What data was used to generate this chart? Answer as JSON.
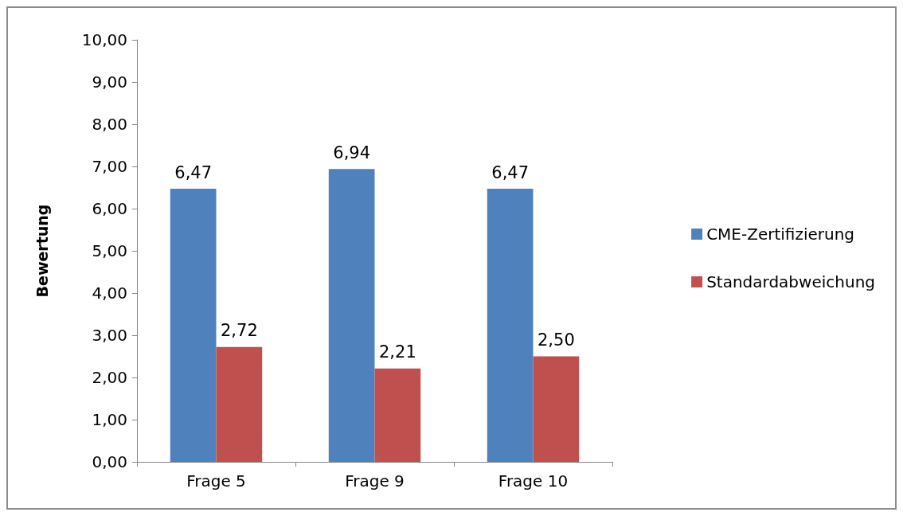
{
  "chart_data": {
    "type": "bar",
    "ylabel": "Bewertung",
    "categories": [
      "Frage 5",
      "Frage 9",
      "Frage 10"
    ],
    "series": [
      {
        "name": "CME-Zertifizierung",
        "color": "#4f81bd",
        "values": [
          6.47,
          6.94,
          6.47
        ],
        "value_labels": [
          "6,47",
          "6,94",
          "6,47"
        ]
      },
      {
        "name": "Standardabweichung",
        "color": "#c0504d",
        "values": [
          2.72,
          2.21,
          2.5
        ],
        "value_labels": [
          "2,72",
          "2,21",
          "2,50"
        ]
      }
    ],
    "ylim": [
      0,
      10
    ],
    "yticks": [
      {
        "value": 0,
        "label": "0,00"
      },
      {
        "value": 1,
        "label": "1,00"
      },
      {
        "value": 2,
        "label": "2,00"
      },
      {
        "value": 3,
        "label": "3,00"
      },
      {
        "value": 4,
        "label": "4,00"
      },
      {
        "value": 5,
        "label": "5,00"
      },
      {
        "value": 6,
        "label": "6,00"
      },
      {
        "value": 7,
        "label": "7,00"
      },
      {
        "value": 8,
        "label": "8,00"
      },
      {
        "value": 9,
        "label": "9,00"
      },
      {
        "value": 10,
        "label": "10,00"
      }
    ],
    "grid": false,
    "legend": "right"
  }
}
